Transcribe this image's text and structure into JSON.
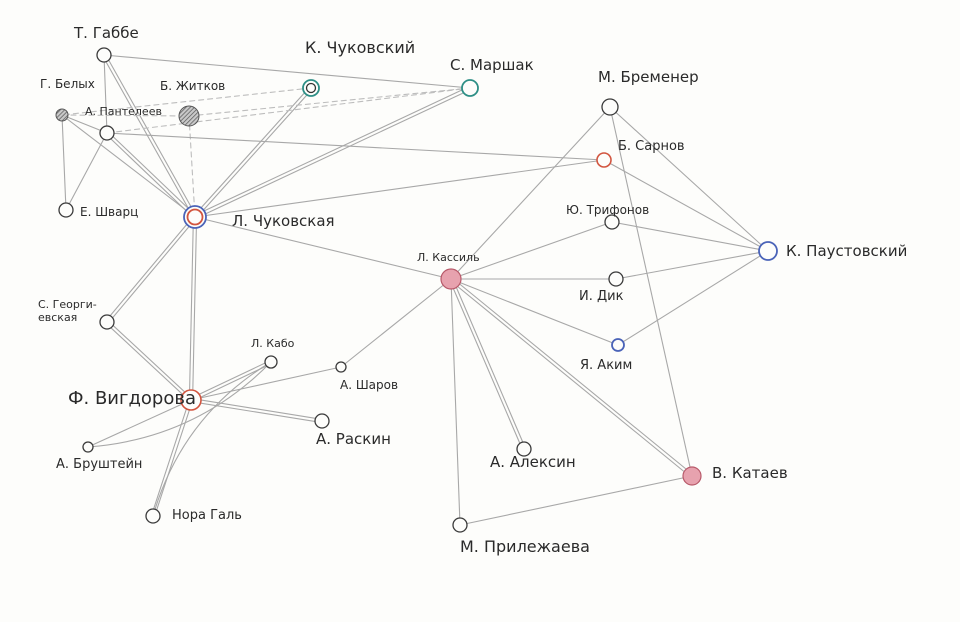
{
  "colors": {
    "paper": "#fdfdfb",
    "line": "#a8a8a8",
    "node_stroke": "#3a3a3a",
    "red": "#d2553f",
    "blue": "#4a63b8",
    "green": "#2e8f86",
    "pink_fill": "#e7a2ae",
    "gray_fill": "#8a8a8a"
  },
  "nodes": [
    {
      "id": "gabbe",
      "label": "Т. Габбе",
      "style": "plain"
    },
    {
      "id": "kchukovsky",
      "label": "К. Чуковский",
      "style": "double-green"
    },
    {
      "id": "marshak",
      "label": "С. Маршак",
      "style": "green"
    },
    {
      "id": "belykh",
      "label": "Г. Белых",
      "style": "hatched"
    },
    {
      "id": "zhitkov",
      "label": "Б. Житков",
      "style": "hatched"
    },
    {
      "id": "panteleev",
      "label": "А. Пантелеев",
      "style": "plain"
    },
    {
      "id": "shvarts",
      "label": "Е. Шварц",
      "style": "plain"
    },
    {
      "id": "lchukovskaya",
      "label": "Л. Чуковская",
      "style": "double-red-blue"
    },
    {
      "id": "bremener",
      "label": "М. Бременер",
      "style": "plain"
    },
    {
      "id": "sarnov",
      "label": "Б. Сарнов",
      "style": "red"
    },
    {
      "id": "trifonov",
      "label": "Ю. Трифонов",
      "style": "plain"
    },
    {
      "id": "paustovsky",
      "label": "К. Паустовский",
      "style": "blue"
    },
    {
      "id": "kassil",
      "label": "Л. Кассиль",
      "style": "pink"
    },
    {
      "id": "dik",
      "label": "И. Дик",
      "style": "plain"
    },
    {
      "id": "akim",
      "label": "Я. Аким",
      "style": "blue"
    },
    {
      "id": "georgievskaya",
      "label": "С. Георги-\nевская",
      "style": "plain"
    },
    {
      "id": "kabo",
      "label": "Л. Кабо",
      "style": "plain"
    },
    {
      "id": "sharov",
      "label": "А. Шаров",
      "style": "plain"
    },
    {
      "id": "vigdorova",
      "label": "Ф. Вигдорова",
      "style": "red"
    },
    {
      "id": "raskin",
      "label": "А. Раскин",
      "style": "plain"
    },
    {
      "id": "brushtein",
      "label": "А. Бруштейн",
      "style": "plain"
    },
    {
      "id": "aleksin",
      "label": "А. Алексин",
      "style": "plain"
    },
    {
      "id": "kataev",
      "label": "В. Катаев",
      "style": "pink"
    },
    {
      "id": "galь",
      "label": "Нора Галь",
      "style": "plain"
    },
    {
      "id": "prilezhaeva",
      "label": "М. Прилежаева",
      "style": "plain"
    }
  ],
  "edges": [
    {
      "from": "gabbe",
      "to": "marshak",
      "kind": "solid"
    },
    {
      "from": "gabbe",
      "to": "lchukovskaya",
      "kind": "double"
    },
    {
      "from": "gabbe",
      "to": "panteleev",
      "kind": "solid"
    },
    {
      "from": "kchukovsky",
      "to": "lchukovskaya",
      "kind": "double"
    },
    {
      "from": "marshak",
      "to": "lchukovskaya",
      "kind": "double"
    },
    {
      "from": "marshak",
      "to": "panteleev",
      "kind": "dashed"
    },
    {
      "from": "kchukovsky",
      "to": "belykh",
      "kind": "dashed"
    },
    {
      "from": "zhitkov",
      "to": "marshak",
      "kind": "dashed"
    },
    {
      "from": "zhitkov",
      "to": "lchukovskaya",
      "kind": "dashed"
    },
    {
      "from": "belykh",
      "to": "zhitkov",
      "kind": "dashed"
    },
    {
      "from": "belykh",
      "to": "lchukovskaya",
      "kind": "solid"
    },
    {
      "from": "belykh",
      "to": "shvarts",
      "kind": "solid"
    },
    {
      "from": "panteleev",
      "to": "lchukovskaya",
      "kind": "double"
    },
    {
      "from": "panteleev",
      "to": "shvarts",
      "kind": "solid"
    },
    {
      "from": "panteleev",
      "to": "belykh",
      "kind": "solid"
    },
    {
      "from": "panteleev",
      "to": "sarnov",
      "kind": "solid"
    },
    {
      "from": "lchukovskaya",
      "to": "sarnov",
      "kind": "solid"
    },
    {
      "from": "lchukovskaya",
      "to": "kassil",
      "kind": "solid"
    },
    {
      "from": "lchukovskaya",
      "to": "georgievskaya",
      "kind": "double"
    },
    {
      "from": "lchukovskaya",
      "to": "vigdorova",
      "kind": "double"
    },
    {
      "from": "georgievskaya",
      "to": "vigdorova",
      "kind": "double"
    },
    {
      "from": "bremener",
      "to": "paustovsky",
      "kind": "solid"
    },
    {
      "from": "bremener",
      "to": "kataev",
      "kind": "solid"
    },
    {
      "from": "kassil",
      "to": "bremener",
      "kind": "solid"
    },
    {
      "from": "sarnov",
      "to": "paustovsky",
      "kind": "solid"
    },
    {
      "from": "trifonov",
      "to": "paustovsky",
      "kind": "solid"
    },
    {
      "from": "kassil",
      "to": "trifonov",
      "kind": "solid"
    },
    {
      "from": "kassil",
      "to": "dik",
      "kind": "solid"
    },
    {
      "from": "kassil",
      "to": "akim",
      "kind": "solid"
    },
    {
      "from": "kassil",
      "to": "aleksin",
      "kind": "double"
    },
    {
      "from": "kassil",
      "to": "kataev",
      "kind": "double"
    },
    {
      "from": "kassil",
      "to": "prilezhaeva",
      "kind": "solid"
    },
    {
      "from": "kassil",
      "to": "sharov",
      "kind": "solid"
    },
    {
      "from": "dik",
      "to": "paustovsky",
      "kind": "solid"
    },
    {
      "from": "akim",
      "to": "paustovsky",
      "kind": "solid"
    },
    {
      "from": "kataev",
      "to": "prilezhaeva",
      "kind": "solid"
    },
    {
      "from": "vigdorova",
      "to": "kabo",
      "kind": "double"
    },
    {
      "from": "vigdorova",
      "to": "sharov",
      "kind": "solid"
    },
    {
      "from": "vigdorova",
      "to": "raskin",
      "kind": "double"
    },
    {
      "from": "vigdorova",
      "to": "brushtein",
      "kind": "solid"
    },
    {
      "from": "vigdorova",
      "to": "galь",
      "kind": "double"
    },
    {
      "from": "brushtein",
      "to": "kabo",
      "kind": "curve"
    },
    {
      "from": "kabo",
      "to": "galь",
      "kind": "curve"
    }
  ]
}
